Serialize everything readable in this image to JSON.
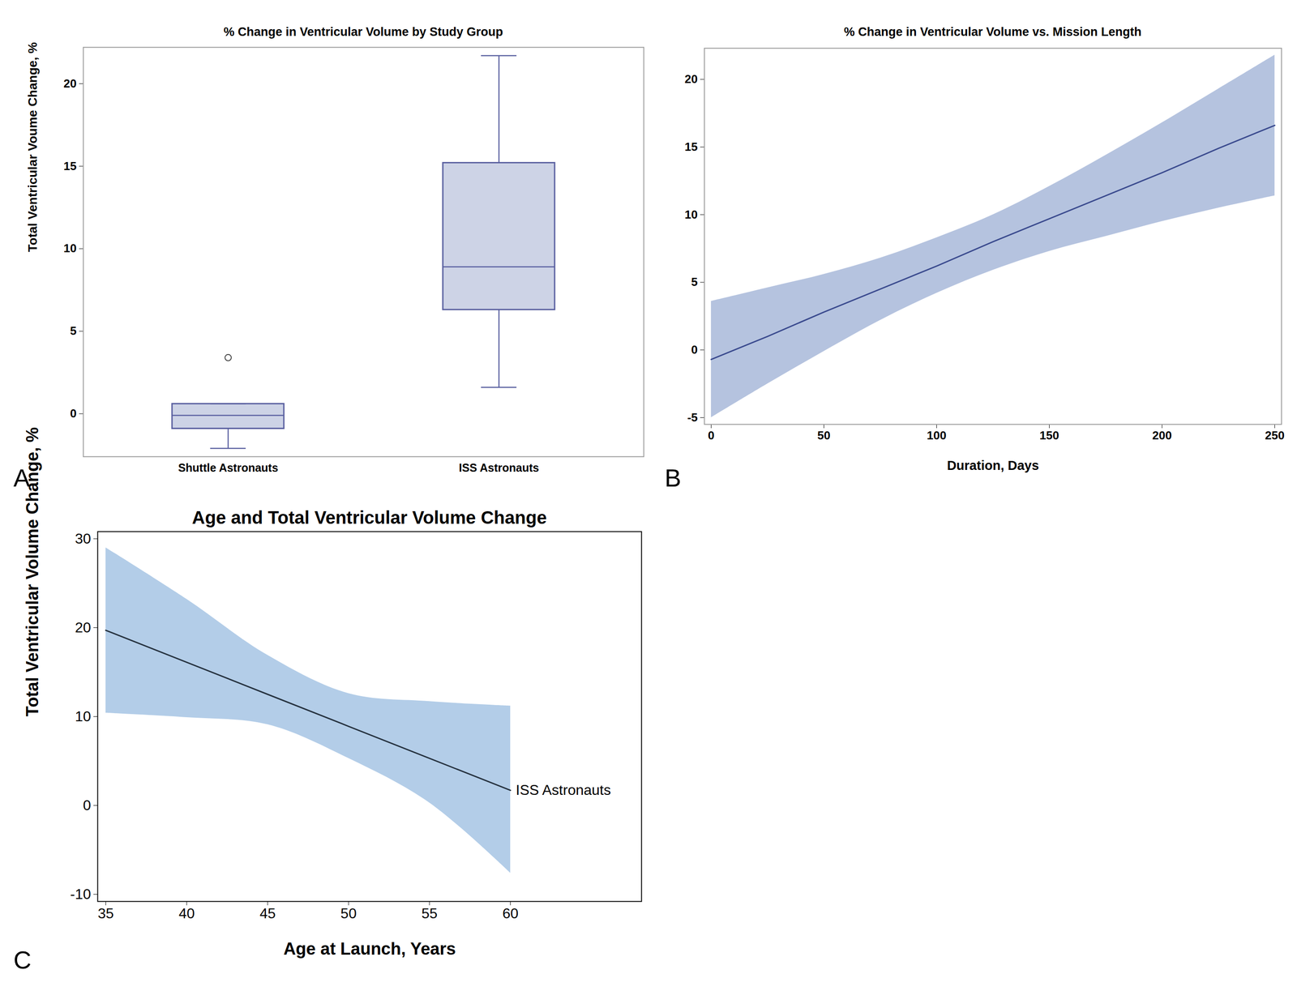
{
  "chart_data": [
    {
      "type": "box",
      "panel": "A",
      "title": "% Change in Ventricular Volume by Study Group",
      "y_label": "Total Ventricular Voume Change, %",
      "categories": [
        "Shuttle Astronauts",
        "ISS Astronauts"
      ],
      "boxes": [
        {
          "min": -2.1,
          "q1": -0.9,
          "median": -0.1,
          "q3": 0.6,
          "max": 0.6,
          "outliers": [
            3.4
          ]
        },
        {
          "min": 1.6,
          "q1": 6.3,
          "median": 8.9,
          "q3": 15.2,
          "max": 21.7,
          "outliers": []
        }
      ],
      "color": "#cdd3e6",
      "ylim": [
        -2.6,
        22.2
      ],
      "yticks": [
        0,
        5,
        10,
        15,
        20
      ]
    },
    {
      "type": "line",
      "panel": "B",
      "title": "% Change in Ventricular Volume vs. Mission Length",
      "x_label": "Duration, Days",
      "x": [
        0,
        25,
        50,
        75,
        100,
        125,
        150,
        175,
        200,
        225,
        250
      ],
      "series": [
        {
          "color": "#3a4a8e",
          "values": [
            -0.7,
            1.0,
            2.8,
            4.5,
            6.2,
            8.0,
            9.7,
            11.4,
            13.1,
            14.9,
            16.6
          ],
          "lower": [
            -5.0,
            -2.5,
            -0.1,
            2.2,
            4.2,
            5.9,
            7.3,
            8.4,
            9.5,
            10.5,
            11.4
          ],
          "upper": [
            3.6,
            4.6,
            5.6,
            6.8,
            8.3,
            10.0,
            12.1,
            14.4,
            16.8,
            19.3,
            21.8
          ]
        }
      ],
      "xlim": [
        -3,
        253
      ],
      "xticks": [
        0,
        50,
        100,
        150,
        200,
        250
      ],
      "ylim": [
        -5.5,
        22.3
      ],
      "yticks": [
        -5,
        0,
        5,
        10,
        15,
        20
      ]
    },
    {
      "type": "line",
      "panel": "C",
      "title": "Age and Total Ventricular Volume Change",
      "x_label": "Age at Launch, Years",
      "y_label": "Total Ventricular Volume Change, %",
      "x": [
        35,
        40,
        45,
        50,
        55,
        60
      ],
      "series": [
        {
          "name": "ISS Astronauts",
          "color": "#26323f",
          "values": [
            19.7,
            16.1,
            12.5,
            8.9,
            5.3,
            1.7
          ],
          "lower": [
            10.4,
            9.9,
            9.1,
            5.3,
            0.3,
            -7.6
          ],
          "upper": [
            29.0,
            23.2,
            16.9,
            12.6,
            11.7,
            11.2
          ]
        }
      ],
      "xlim": [
        34.5,
        68.1
      ],
      "xticks": [
        35,
        40,
        45,
        50,
        55,
        60
      ],
      "ylim": [
        -10.8,
        30.8
      ],
      "yticks": [
        -10,
        0,
        10,
        20,
        30
      ]
    }
  ]
}
